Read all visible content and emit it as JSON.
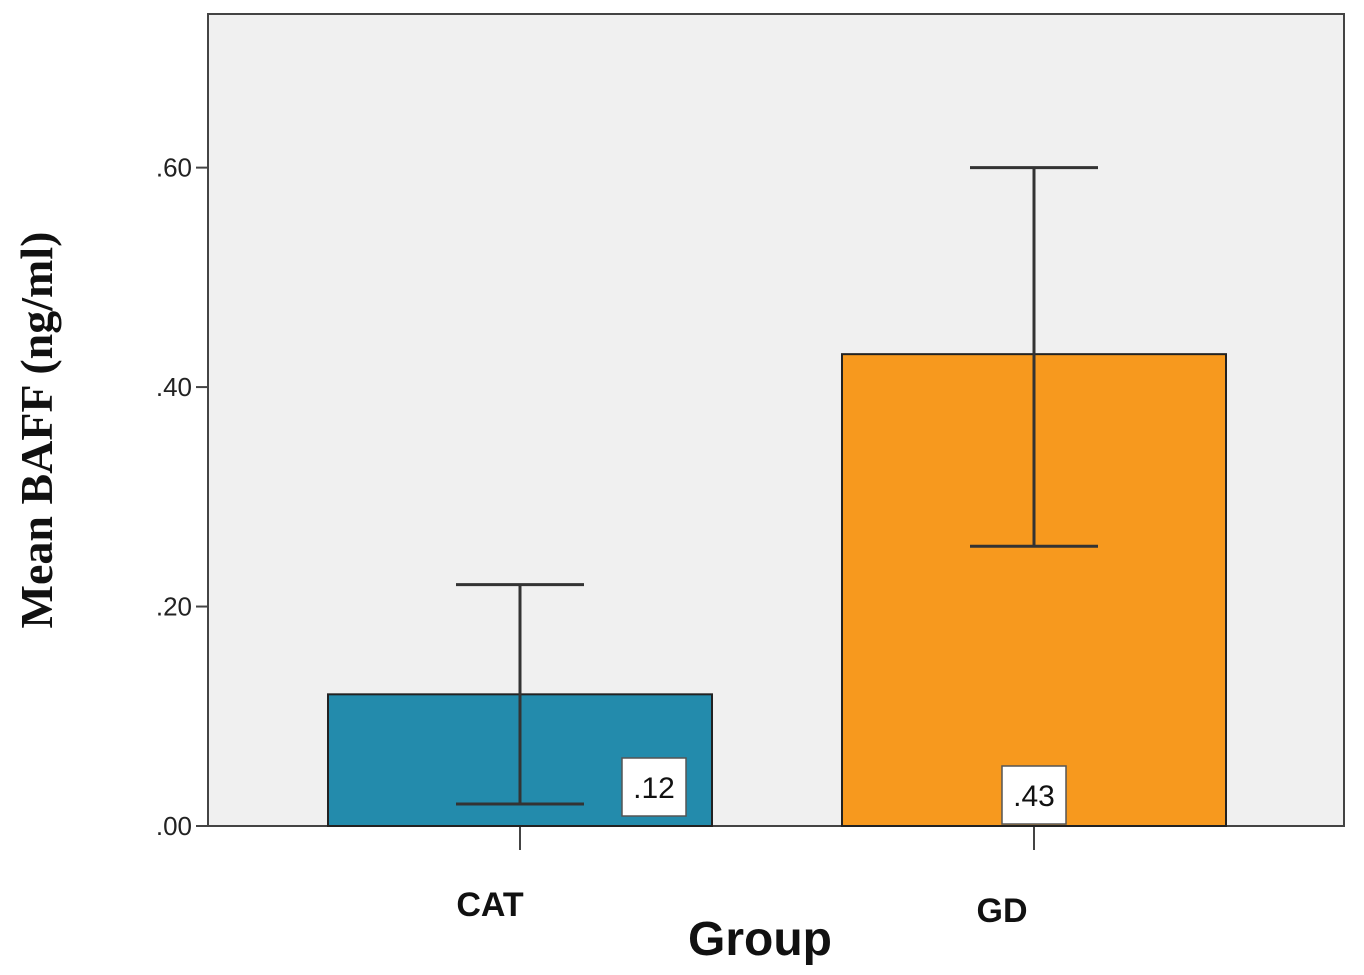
{
  "chart_data": {
    "type": "bar",
    "title": "",
    "xlabel": "Group",
    "ylabel": "Mean BAFF (ng/ml)",
    "categories": [
      "CAT",
      "GD"
    ],
    "values": [
      0.12,
      0.43
    ],
    "value_labels": [
      ".12",
      ".43"
    ],
    "error_low": [
      0.02,
      0.255
    ],
    "error_high": [
      0.22,
      0.6
    ],
    "colors": [
      "#238BAC",
      "#F7991E"
    ],
    "ylim": [
      0,
      0.74
    ],
    "yticks": [
      0,
      0.2,
      0.4,
      0.6
    ],
    "ytick_labels": [
      ".00",
      ".20",
      ".40",
      ".60"
    ],
    "grid": false
  }
}
